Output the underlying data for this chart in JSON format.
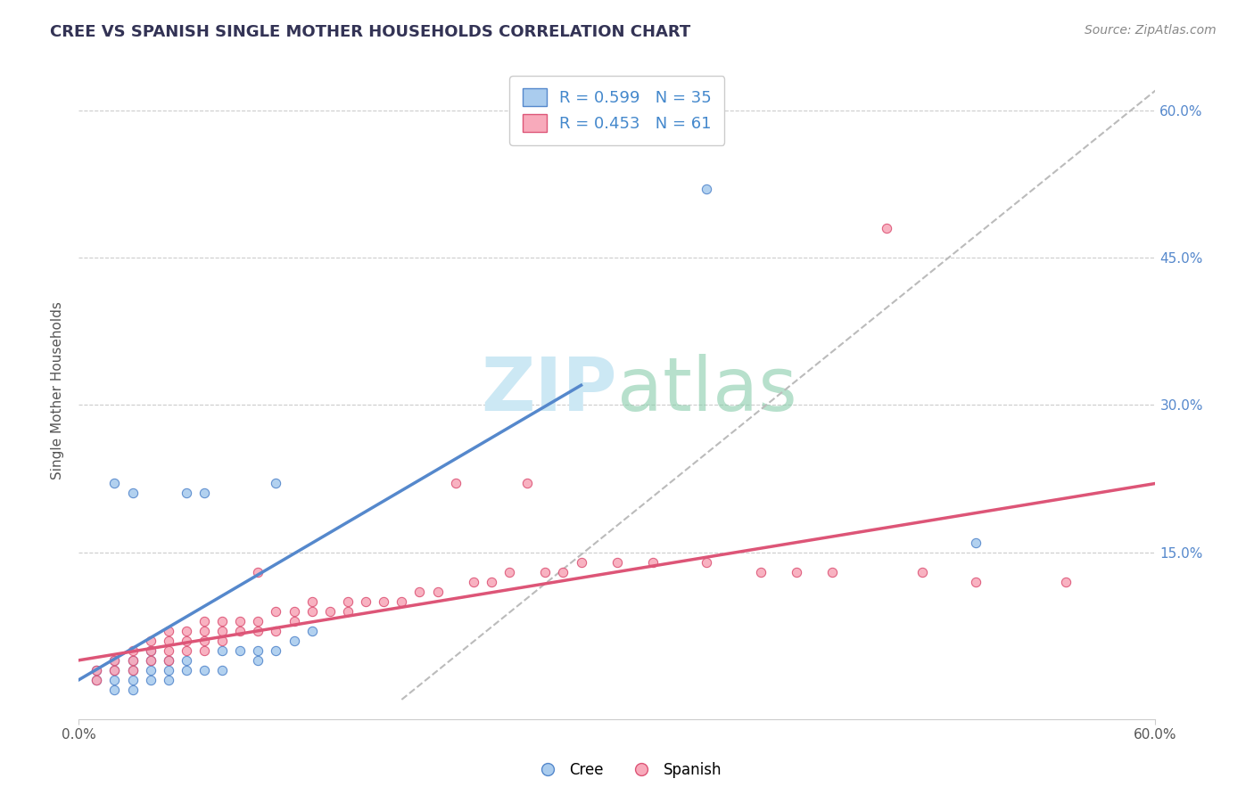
{
  "title": "CREE VS SPANISH SINGLE MOTHER HOUSEHOLDS CORRELATION CHART",
  "source": "Source: ZipAtlas.com",
  "ylabel": "Single Mother Households",
  "xlim": [
    0.0,
    0.6
  ],
  "ylim": [
    -0.02,
    0.65
  ],
  "ytick_values": [
    0.15,
    0.3,
    0.45,
    0.6
  ],
  "ytick_labels": [
    "15.0%",
    "30.0%",
    "45.0%",
    "60.0%"
  ],
  "cree_R": 0.599,
  "cree_N": 35,
  "spanish_R": 0.453,
  "spanish_N": 61,
  "cree_color": "#aaccee",
  "spanish_color": "#f8aabb",
  "cree_line_color": "#5588cc",
  "spanish_line_color": "#dd5577",
  "trend_line_color": "#bbbbbb",
  "watermark_color": "#cce8f4",
  "cree_line": [
    [
      0.0,
      0.02
    ],
    [
      0.28,
      0.32
    ]
  ],
  "spanish_line": [
    [
      0.0,
      0.04
    ],
    [
      0.6,
      0.22
    ]
  ],
  "dashed_line": [
    [
      0.18,
      0.0
    ],
    [
      0.6,
      0.62
    ]
  ],
  "cree_scatter": [
    [
      0.01,
      0.02
    ],
    [
      0.01,
      0.03
    ],
    [
      0.02,
      0.01
    ],
    [
      0.02,
      0.02
    ],
    [
      0.02,
      0.03
    ],
    [
      0.02,
      0.04
    ],
    [
      0.03,
      0.01
    ],
    [
      0.03,
      0.02
    ],
    [
      0.03,
      0.03
    ],
    [
      0.03,
      0.04
    ],
    [
      0.04,
      0.02
    ],
    [
      0.04,
      0.03
    ],
    [
      0.04,
      0.04
    ],
    [
      0.04,
      0.05
    ],
    [
      0.05,
      0.02
    ],
    [
      0.05,
      0.03
    ],
    [
      0.05,
      0.04
    ],
    [
      0.06,
      0.03
    ],
    [
      0.06,
      0.04
    ],
    [
      0.06,
      0.21
    ],
    [
      0.07,
      0.03
    ],
    [
      0.07,
      0.21
    ],
    [
      0.08,
      0.03
    ],
    [
      0.08,
      0.05
    ],
    [
      0.09,
      0.05
    ],
    [
      0.1,
      0.04
    ],
    [
      0.1,
      0.05
    ],
    [
      0.11,
      0.05
    ],
    [
      0.11,
      0.22
    ],
    [
      0.12,
      0.06
    ],
    [
      0.13,
      0.07
    ],
    [
      0.02,
      0.22
    ],
    [
      0.03,
      0.21
    ],
    [
      0.35,
      0.52
    ],
    [
      0.5,
      0.16
    ]
  ],
  "spanish_scatter": [
    [
      0.01,
      0.02
    ],
    [
      0.01,
      0.03
    ],
    [
      0.02,
      0.03
    ],
    [
      0.02,
      0.04
    ],
    [
      0.03,
      0.03
    ],
    [
      0.03,
      0.04
    ],
    [
      0.03,
      0.05
    ],
    [
      0.04,
      0.04
    ],
    [
      0.04,
      0.05
    ],
    [
      0.04,
      0.06
    ],
    [
      0.05,
      0.04
    ],
    [
      0.05,
      0.05
    ],
    [
      0.05,
      0.06
    ],
    [
      0.05,
      0.07
    ],
    [
      0.06,
      0.05
    ],
    [
      0.06,
      0.06
    ],
    [
      0.06,
      0.07
    ],
    [
      0.07,
      0.05
    ],
    [
      0.07,
      0.06
    ],
    [
      0.07,
      0.07
    ],
    [
      0.07,
      0.08
    ],
    [
      0.08,
      0.06
    ],
    [
      0.08,
      0.07
    ],
    [
      0.08,
      0.08
    ],
    [
      0.09,
      0.07
    ],
    [
      0.09,
      0.08
    ],
    [
      0.1,
      0.07
    ],
    [
      0.1,
      0.08
    ],
    [
      0.1,
      0.13
    ],
    [
      0.11,
      0.07
    ],
    [
      0.11,
      0.09
    ],
    [
      0.12,
      0.08
    ],
    [
      0.12,
      0.09
    ],
    [
      0.13,
      0.09
    ],
    [
      0.13,
      0.1
    ],
    [
      0.14,
      0.09
    ],
    [
      0.15,
      0.09
    ],
    [
      0.15,
      0.1
    ],
    [
      0.16,
      0.1
    ],
    [
      0.17,
      0.1
    ],
    [
      0.18,
      0.1
    ],
    [
      0.19,
      0.11
    ],
    [
      0.2,
      0.11
    ],
    [
      0.21,
      0.22
    ],
    [
      0.22,
      0.12
    ],
    [
      0.23,
      0.12
    ],
    [
      0.24,
      0.13
    ],
    [
      0.25,
      0.22
    ],
    [
      0.26,
      0.13
    ],
    [
      0.27,
      0.13
    ],
    [
      0.28,
      0.14
    ],
    [
      0.3,
      0.14
    ],
    [
      0.32,
      0.14
    ],
    [
      0.35,
      0.14
    ],
    [
      0.38,
      0.13
    ],
    [
      0.4,
      0.13
    ],
    [
      0.42,
      0.13
    ],
    [
      0.45,
      0.48
    ],
    [
      0.47,
      0.13
    ],
    [
      0.5,
      0.12
    ],
    [
      0.55,
      0.12
    ]
  ]
}
